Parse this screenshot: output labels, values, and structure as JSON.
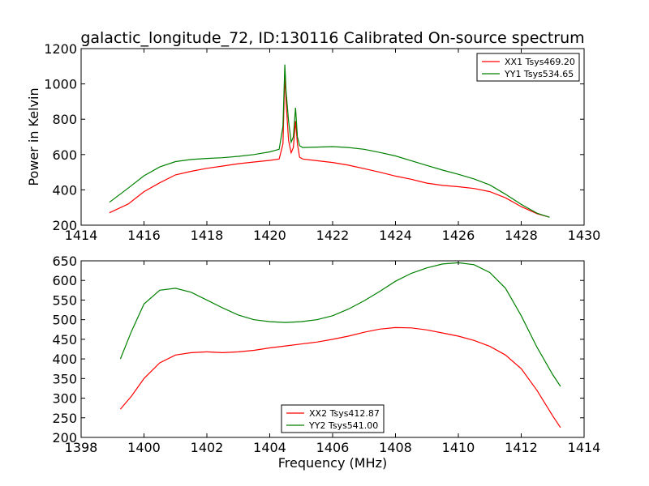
{
  "title": "galactic_longitude_72, ID:130116 Calibrated On-source spectrum",
  "chart_data": [
    {
      "type": "line",
      "xlabel": "",
      "ylabel": "Power in Kelvin",
      "xlim": [
        1414,
        1430
      ],
      "ylim": [
        200,
        1200
      ],
      "xticks": [
        1414,
        1416,
        1418,
        1420,
        1422,
        1424,
        1426,
        1428,
        1430
      ],
      "yticks": [
        200,
        400,
        600,
        800,
        1000,
        1200
      ],
      "grid": false,
      "legend_position": "top-right",
      "series": [
        {
          "name": "XX1 Tsys469.20",
          "color": "#ff0000",
          "x": [
            1414.9,
            1415.5,
            1416,
            1416.5,
            1417,
            1417.5,
            1418,
            1418.5,
            1419,
            1419.5,
            1420,
            1420.3,
            1420.42,
            1420.48,
            1420.52,
            1420.6,
            1420.68,
            1420.75,
            1420.82,
            1420.88,
            1420.95,
            1421.05,
            1421.5,
            1422,
            1422.5,
            1423,
            1423.5,
            1424,
            1424.5,
            1425,
            1425.5,
            1426,
            1426.5,
            1427,
            1427.5,
            1428,
            1428.5,
            1428.9
          ],
          "y": [
            270,
            320,
            390,
            440,
            485,
            505,
            522,
            535,
            548,
            558,
            567,
            575,
            660,
            1060,
            900,
            680,
            610,
            640,
            790,
            660,
            585,
            575,
            565,
            555,
            540,
            520,
            500,
            478,
            460,
            438,
            425,
            418,
            408,
            390,
            355,
            305,
            265,
            245
          ]
        },
        {
          "name": "YY1 Tsys534.65",
          "color": "#008000",
          "x": [
            1414.9,
            1415.5,
            1416,
            1416.5,
            1417,
            1417.5,
            1418,
            1418.5,
            1419,
            1419.5,
            1420,
            1420.3,
            1420.42,
            1420.48,
            1420.52,
            1420.6,
            1420.68,
            1420.75,
            1420.82,
            1420.88,
            1420.95,
            1421.05,
            1421.5,
            1422,
            1422.5,
            1423,
            1423.5,
            1424,
            1424.5,
            1425,
            1425.5,
            1426,
            1426.5,
            1427,
            1427.5,
            1428,
            1428.5,
            1428.9
          ],
          "y": [
            330,
            410,
            480,
            530,
            560,
            572,
            578,
            582,
            590,
            600,
            615,
            630,
            760,
            1110,
            960,
            790,
            670,
            700,
            865,
            700,
            650,
            640,
            642,
            645,
            640,
            630,
            612,
            592,
            565,
            538,
            512,
            488,
            462,
            428,
            375,
            318,
            268,
            245
          ]
        }
      ]
    },
    {
      "type": "line",
      "xlabel": "Frequency (MHz)",
      "ylabel": "",
      "xlim": [
        1398,
        1414
      ],
      "ylim": [
        200,
        650
      ],
      "xticks": [
        1398,
        1400,
        1402,
        1404,
        1406,
        1408,
        1410,
        1412,
        1414
      ],
      "yticks": [
        200,
        250,
        300,
        350,
        400,
        450,
        500,
        550,
        600,
        650
      ],
      "grid": false,
      "legend_position": "bottom-center",
      "series": [
        {
          "name": "XX2 Tsys412.87",
          "color": "#ff0000",
          "x": [
            1399.25,
            1399.6,
            1400,
            1400.5,
            1401,
            1401.5,
            1402,
            1402.5,
            1403,
            1403.5,
            1404,
            1404.5,
            1405,
            1405.5,
            1406,
            1406.5,
            1407,
            1407.5,
            1408,
            1408.5,
            1409,
            1409.5,
            1410,
            1410.5,
            1411,
            1411.5,
            1412,
            1412.5,
            1413,
            1413.25
          ],
          "y": [
            272,
            305,
            350,
            390,
            410,
            416,
            418,
            416,
            418,
            422,
            428,
            433,
            438,
            443,
            450,
            458,
            468,
            476,
            480,
            479,
            474,
            466,
            458,
            447,
            432,
            410,
            375,
            320,
            255,
            225
          ]
        },
        {
          "name": "YY2 Tsys541.00",
          "color": "#008000",
          "x": [
            1399.25,
            1399.6,
            1400,
            1400.5,
            1401,
            1401.5,
            1402,
            1402.5,
            1403,
            1403.5,
            1404,
            1404.5,
            1405,
            1405.5,
            1406,
            1406.5,
            1407,
            1407.5,
            1408,
            1408.5,
            1409,
            1409.5,
            1410,
            1410.5,
            1411,
            1411.5,
            1412,
            1412.5,
            1413,
            1413.25
          ],
          "y": [
            400,
            470,
            540,
            575,
            580,
            570,
            550,
            530,
            512,
            500,
            495,
            493,
            495,
            500,
            510,
            527,
            548,
            572,
            598,
            618,
            632,
            642,
            645,
            640,
            620,
            580,
            510,
            430,
            360,
            330
          ]
        }
      ]
    }
  ]
}
